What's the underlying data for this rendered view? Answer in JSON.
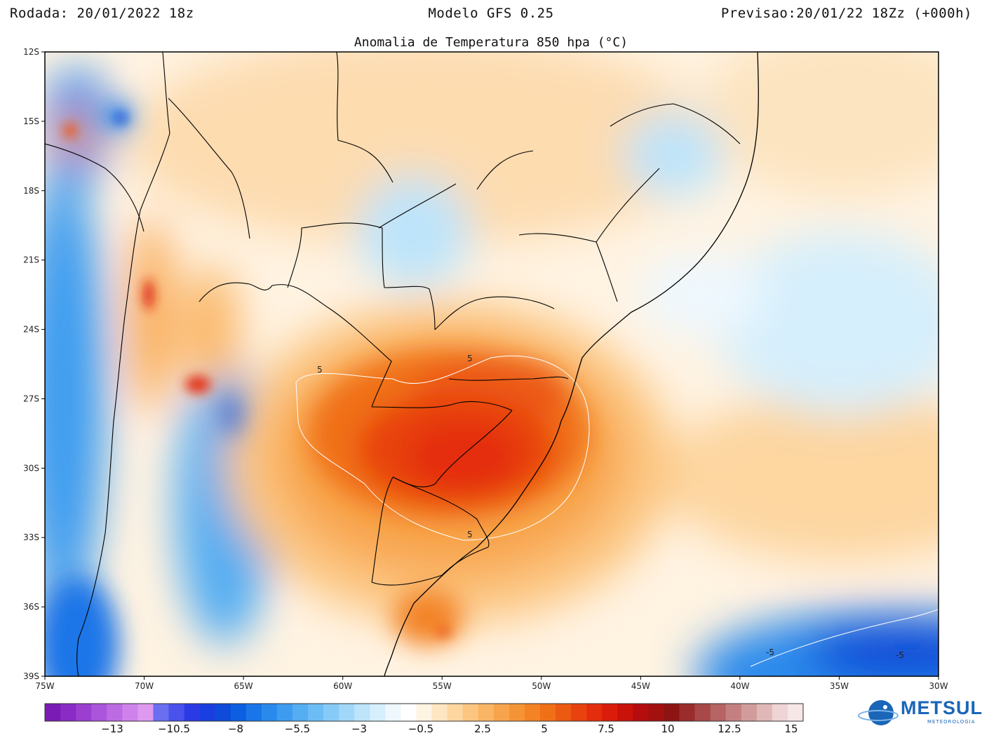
{
  "header": {
    "left": "Rodada: 20/01/2022 18z",
    "center": "Modelo GFS 0.25",
    "right": "Previsao:20/01/22 18Zz (+000h)"
  },
  "subtitle": "Anomalia de Temperatura 850 hpa (°C)",
  "map": {
    "lat_ticks": [
      "12S",
      "15S",
      "18S",
      "21S",
      "24S",
      "27S",
      "30S",
      "33S",
      "36S",
      "39S"
    ],
    "lon_ticks": [
      "75W",
      "70W",
      "65W",
      "60W",
      "55W",
      "50W",
      "45W",
      "40W",
      "35W",
      "30W"
    ],
    "contour_labels": [
      "5",
      "5",
      "5",
      "-5",
      "-5"
    ],
    "extent": {
      "lon_min": -75,
      "lon_max": -30,
      "lat_min": -39,
      "lat_max": -12
    }
  },
  "colorbar": {
    "labels": [
      "-13",
      "-10.5",
      "-8",
      "-5.5",
      "-3",
      "-0.5",
      "2.5",
      "5",
      "7.5",
      "10",
      "12.5",
      "15"
    ],
    "colors": [
      "#7a1bb5",
      "#8a2bc4",
      "#9a3fd0",
      "#ab55db",
      "#bd6be3",
      "#cf82ea",
      "#de99f0",
      "#6a6ef0",
      "#4a52ec",
      "#2c3ae6",
      "#1a3fe0",
      "#0f4bd8",
      "#0b5fe0",
      "#1a76e8",
      "#2a8aec",
      "#3e9cf0",
      "#55adf2",
      "#6cbcf5",
      "#86cbf7",
      "#a1d8f9",
      "#bce4fb",
      "#d6effc",
      "#eef8fe",
      "#ffffff",
      "#fff3e2",
      "#ffe6c2",
      "#fdd6a0",
      "#fcc681",
      "#fab565",
      "#f8a44c",
      "#f59437",
      "#f38325",
      "#f07018",
      "#ec5a12",
      "#e8430f",
      "#e42d0c",
      "#da1d0a",
      "#c8120a",
      "#b50d0d",
      "#a21010",
      "#8e1414",
      "#9a2c2c",
      "#a84848",
      "#b66464",
      "#c48080",
      "#d29c9c",
      "#e0b8b8",
      "#eed4d4",
      "#f6e6e6"
    ]
  },
  "logo": {
    "name": "METSUL",
    "sub": "METEOROLOGIA",
    "color": "#1a66b8"
  }
}
